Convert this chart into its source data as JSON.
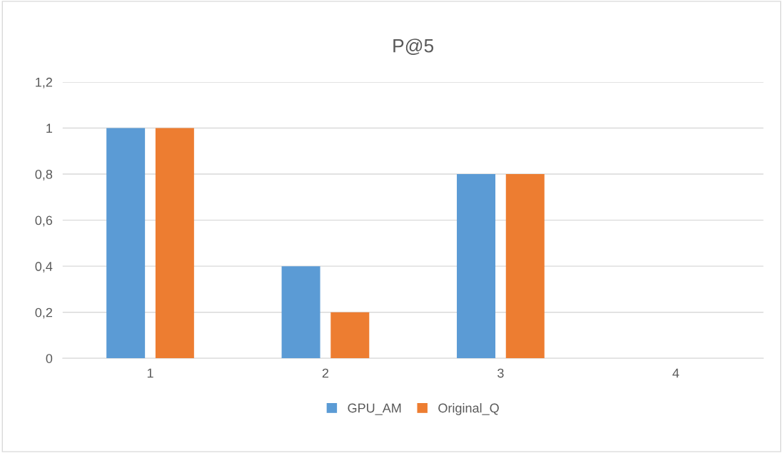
{
  "chart_data": {
    "type": "bar",
    "title": "P@5",
    "categories": [
      "1",
      "2",
      "3",
      "4"
    ],
    "series": [
      {
        "name": "GPU_AM",
        "color": "#5b9bd5",
        "values": [
          1,
          0.4,
          0.8,
          0
        ]
      },
      {
        "name": "Original_Q",
        "color": "#ed7d31",
        "values": [
          1,
          0.2,
          0.8,
          0
        ]
      }
    ],
    "ylim": [
      0,
      1.2
    ],
    "yticks": [
      0,
      {
        "value": 0.2,
        "label": "0,2"
      },
      {
        "value": 0.4,
        "label": "0,4"
      },
      {
        "value": 0.6,
        "label": "0,6"
      },
      {
        "value": 0.8,
        "label": "0,8"
      },
      1,
      {
        "value": 1.2,
        "label": "1,2"
      }
    ],
    "grid": "y",
    "legend": "bottom"
  }
}
